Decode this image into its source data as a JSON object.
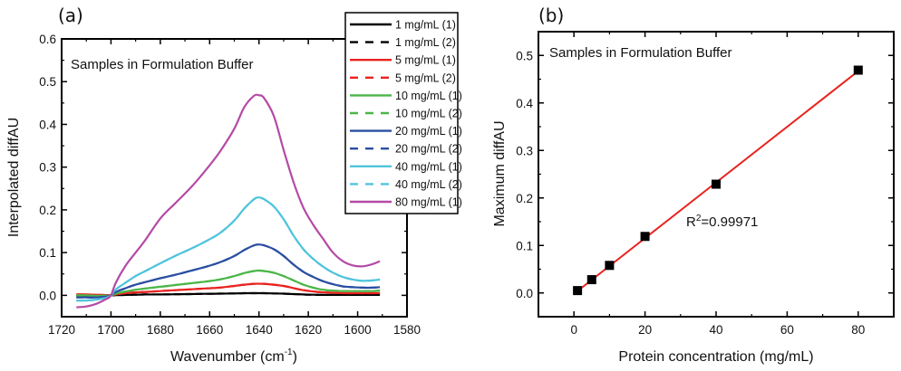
{
  "chart_data": [
    {
      "panel_label": "(a)",
      "type": "line",
      "annotation": "Samples in Formulation Buffer",
      "xlabel": "Wavenumber (cm",
      "xlabel_sup": "-1",
      "xlabel_end": ")",
      "ylabel": "Interpolated diffAU",
      "xlim": [
        1720,
        1580
      ],
      "ylim": [
        -0.05,
        0.6
      ],
      "xticks": [
        1720,
        1700,
        1680,
        1660,
        1640,
        1620,
        1600,
        1580
      ],
      "yticks": [
        "0.0",
        "0.1",
        "0.2",
        "0.3",
        "0.4",
        "0.5",
        "0.6"
      ],
      "ytick_values": [
        0.0,
        0.1,
        0.2,
        0.3,
        0.4,
        0.5,
        0.6
      ],
      "legend_position": "top-right",
      "x": [
        1714,
        1710,
        1706,
        1702,
        1700,
        1698,
        1694,
        1690,
        1686,
        1680,
        1674,
        1668,
        1662,
        1656,
        1650,
        1646,
        1642,
        1640,
        1638,
        1634,
        1630,
        1626,
        1622,
        1618,
        1614,
        1610,
        1606,
        1602,
        1598,
        1594,
        1591
      ],
      "series": [
        {
          "name": "1 mg/mL (1)",
          "color": "#000000",
          "dashed": false,
          "values": [
            -0.001,
            -0.001,
            -0.001,
            0,
            0,
            0.0005,
            0.001,
            0.0015,
            0.002,
            0.002,
            0.0025,
            0.003,
            0.0035,
            0.004,
            0.0045,
            0.005,
            0.005,
            0.005,
            0.005,
            0.0045,
            0.004,
            0.003,
            0.002,
            0.0015,
            0.001,
            0.001,
            0.001,
            0.001,
            0.001,
            0.001,
            0.001
          ]
        },
        {
          "name": "1 mg/mL (2)",
          "color": "#000000",
          "dashed": true,
          "values": [
            -0.001,
            -0.001,
            -0.001,
            0,
            0,
            0.0005,
            0.001,
            0.0015,
            0.002,
            0.002,
            0.0025,
            0.003,
            0.0035,
            0.004,
            0.0045,
            0.005,
            0.005,
            0.005,
            0.005,
            0.0045,
            0.004,
            0.003,
            0.002,
            0.0015,
            0.001,
            0.001,
            0.001,
            0.001,
            0.001,
            0.001,
            0.001
          ]
        },
        {
          "name": "5 mg/mL (1)",
          "color": "#e8231f",
          "dashed": false,
          "values": [
            0.002,
            0.002,
            0.0015,
            0.0005,
            0,
            0.002,
            0.005,
            0.007,
            0.008,
            0.01,
            0.012,
            0.014,
            0.016,
            0.018,
            0.022,
            0.025,
            0.027,
            0.027,
            0.027,
            0.025,
            0.022,
            0.017,
            0.012,
            0.009,
            0.007,
            0.006,
            0.005,
            0.005,
            0.005,
            0.005,
            0.005
          ]
        },
        {
          "name": "5 mg/mL (2)",
          "color": "#e8231f",
          "dashed": true,
          "values": [
            0.002,
            0.002,
            0.0015,
            0.0005,
            0,
            0.002,
            0.005,
            0.007,
            0.008,
            0.01,
            0.012,
            0.014,
            0.016,
            0.018,
            0.022,
            0.025,
            0.027,
            0.027,
            0.027,
            0.025,
            0.022,
            0.017,
            0.012,
            0.009,
            0.007,
            0.006,
            0.005,
            0.005,
            0.005,
            0.005,
            0.005
          ]
        },
        {
          "name": "10 mg/mL (1)",
          "color": "#4cb648",
          "dashed": false,
          "values": [
            0.0,
            0.0,
            -0.001,
            -0.001,
            0,
            0.004,
            0.009,
            0.013,
            0.016,
            0.02,
            0.024,
            0.028,
            0.032,
            0.037,
            0.045,
            0.052,
            0.057,
            0.058,
            0.057,
            0.053,
            0.045,
            0.035,
            0.025,
            0.018,
            0.013,
            0.011,
            0.01,
            0.01,
            0.01,
            0.01,
            0.011
          ]
        },
        {
          "name": "10 mg/mL (2)",
          "color": "#4cb648",
          "dashed": true,
          "values": [
            0.0,
            0.0,
            -0.001,
            -0.001,
            0,
            0.004,
            0.009,
            0.013,
            0.016,
            0.02,
            0.024,
            0.028,
            0.032,
            0.037,
            0.045,
            0.052,
            0.057,
            0.058,
            0.057,
            0.053,
            0.045,
            0.035,
            0.025,
            0.018,
            0.013,
            0.011,
            0.01,
            0.01,
            0.01,
            0.01,
            0.011
          ]
        },
        {
          "name": "20 mg/mL (1)",
          "color": "#2a4ea2",
          "dashed": false,
          "values": [
            -0.005,
            -0.005,
            -0.005,
            -0.003,
            0,
            0.008,
            0.017,
            0.025,
            0.031,
            0.04,
            0.048,
            0.057,
            0.066,
            0.077,
            0.092,
            0.106,
            0.117,
            0.119,
            0.117,
            0.108,
            0.092,
            0.072,
            0.055,
            0.043,
            0.033,
            0.026,
            0.021,
            0.019,
            0.018,
            0.018,
            0.019
          ]
        },
        {
          "name": "20 mg/mL (2)",
          "color": "#2a4ea2",
          "dashed": true,
          "values": [
            -0.005,
            -0.005,
            -0.005,
            -0.003,
            0,
            0.008,
            0.017,
            0.025,
            0.031,
            0.04,
            0.048,
            0.057,
            0.066,
            0.077,
            0.092,
            0.106,
            0.117,
            0.119,
            0.117,
            0.108,
            0.092,
            0.072,
            0.055,
            0.043,
            0.033,
            0.026,
            0.021,
            0.019,
            0.018,
            0.018,
            0.019
          ]
        },
        {
          "name": "40 mg/mL (1)",
          "color": "#50c4dc",
          "dashed": false,
          "values": [
            -0.012,
            -0.012,
            -0.01,
            -0.006,
            0,
            0.014,
            0.03,
            0.045,
            0.057,
            0.075,
            0.092,
            0.108,
            0.125,
            0.145,
            0.175,
            0.203,
            0.225,
            0.229,
            0.225,
            0.208,
            0.178,
            0.14,
            0.108,
            0.085,
            0.067,
            0.053,
            0.043,
            0.037,
            0.034,
            0.035,
            0.037
          ]
        },
        {
          "name": "40 mg/mL (2)",
          "color": "#50c4dc",
          "dashed": true,
          "values": [
            -0.012,
            -0.012,
            -0.01,
            -0.006,
            0,
            0.014,
            0.03,
            0.045,
            0.057,
            0.075,
            0.092,
            0.108,
            0.125,
            0.145,
            0.175,
            0.203,
            0.225,
            0.229,
            0.225,
            0.208,
            0.178,
            0.14,
            0.108,
            0.085,
            0.067,
            0.053,
            0.043,
            0.037,
            0.034,
            0.035,
            0.037
          ]
        },
        {
          "name": "80 mg/mL (1)",
          "color": "#b44aa6",
          "dashed": false,
          "values": [
            -0.028,
            -0.026,
            -0.02,
            -0.009,
            0,
            0.03,
            0.07,
            0.1,
            0.13,
            0.18,
            0.215,
            0.25,
            0.29,
            0.335,
            0.39,
            0.44,
            0.467,
            0.468,
            0.462,
            0.42,
            0.34,
            0.265,
            0.205,
            0.165,
            0.132,
            0.1,
            0.08,
            0.07,
            0.068,
            0.073,
            0.08
          ]
        }
      ]
    },
    {
      "panel_label": "(b)",
      "type": "scatter",
      "annotation": "Samples in Formulation Buffer",
      "fit_label": "R",
      "fit_label_sup": "2",
      "fit_label_end": "=0.99971",
      "xlabel": "Protein concentration (mg/mL)",
      "ylabel": "Maximum diffAU",
      "xlim": [
        -10,
        90
      ],
      "ylim": [
        -0.05,
        0.55
      ],
      "xticks": [
        "0",
        "20",
        "40",
        "60",
        "80"
      ],
      "xtick_values": [
        0,
        20,
        40,
        60,
        80
      ],
      "yticks": [
        "0.0",
        "0.1",
        "0.2",
        "0.3",
        "0.4",
        "0.5"
      ],
      "ytick_values": [
        0.0,
        0.1,
        0.2,
        0.3,
        0.4,
        0.5
      ],
      "points": {
        "x": [
          1,
          5,
          10,
          20,
          40,
          80
        ],
        "y": [
          0.005,
          0.028,
          0.058,
          0.119,
          0.229,
          0.469
        ],
        "color": "#000000"
      },
      "fit_line": {
        "x": [
          1,
          80
        ],
        "y": [
          0.004,
          0.467
        ],
        "color": "#e8231f"
      }
    }
  ]
}
